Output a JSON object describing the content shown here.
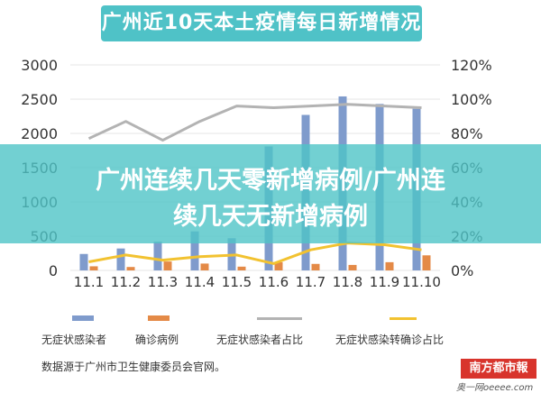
{
  "page": {
    "overlay_title_line1": "广州连续几天零新增病例/广州连",
    "overlay_title_line2": "续几天无新增病例"
  },
  "source_note": "数据源于广州市卫生健康委员会官网。",
  "watermark": {
    "brand": "南方都市報",
    "sub": "奥一网oeeee.com"
  },
  "colors": {
    "bar1": "#7f9bcc",
    "bar2": "#e48a47",
    "line1": "#b3b3b3",
    "line2": "#f2c230",
    "title_bg": "#4fc2c7",
    "banner_bg": "#4fc4c7",
    "grid": "#e6e6e6"
  },
  "chart_data": {
    "type": "bar",
    "title": "广州近10天本土疫情每日新增情况",
    "categories": [
      "11.1",
      "11.2",
      "11.3",
      "11.4",
      "11.5",
      "11.6",
      "11.7",
      "11.8",
      "11.9",
      "11.10"
    ],
    "y_left": {
      "ylim": [
        0,
        3000
      ],
      "ticks": [
        "0",
        "500",
        "1000",
        "1500",
        "2000",
        "2500",
        "3000"
      ]
    },
    "y_right": {
      "ylim": [
        0,
        1.2
      ],
      "ticks": [
        "0%",
        "20%",
        "40%",
        "60%",
        "80%",
        "100%",
        "120%"
      ]
    },
    "series": [
      {
        "name": "无症状感染者",
        "type": "bar",
        "axis": "left",
        "values": [
          240,
          320,
          420,
          570,
          470,
          1810,
          2270,
          2540,
          2430,
          2360
        ]
      },
      {
        "name": "确诊病例",
        "type": "bar",
        "axis": "left",
        "values": [
          60,
          50,
          130,
          100,
          55,
          120,
          95,
          80,
          120,
          220
        ]
      },
      {
        "name": "无症状感染者占比",
        "type": "line",
        "axis": "right",
        "values": [
          0.77,
          0.87,
          0.76,
          0.87,
          0.96,
          0.95,
          0.96,
          0.97,
          0.96,
          0.95
        ]
      },
      {
        "name": "无症状感染转确诊占比",
        "type": "line",
        "axis": "right",
        "values": [
          0.05,
          0.09,
          0.06,
          0.08,
          0.09,
          0.04,
          0.12,
          0.16,
          0.15,
          0.12
        ]
      }
    ]
  }
}
